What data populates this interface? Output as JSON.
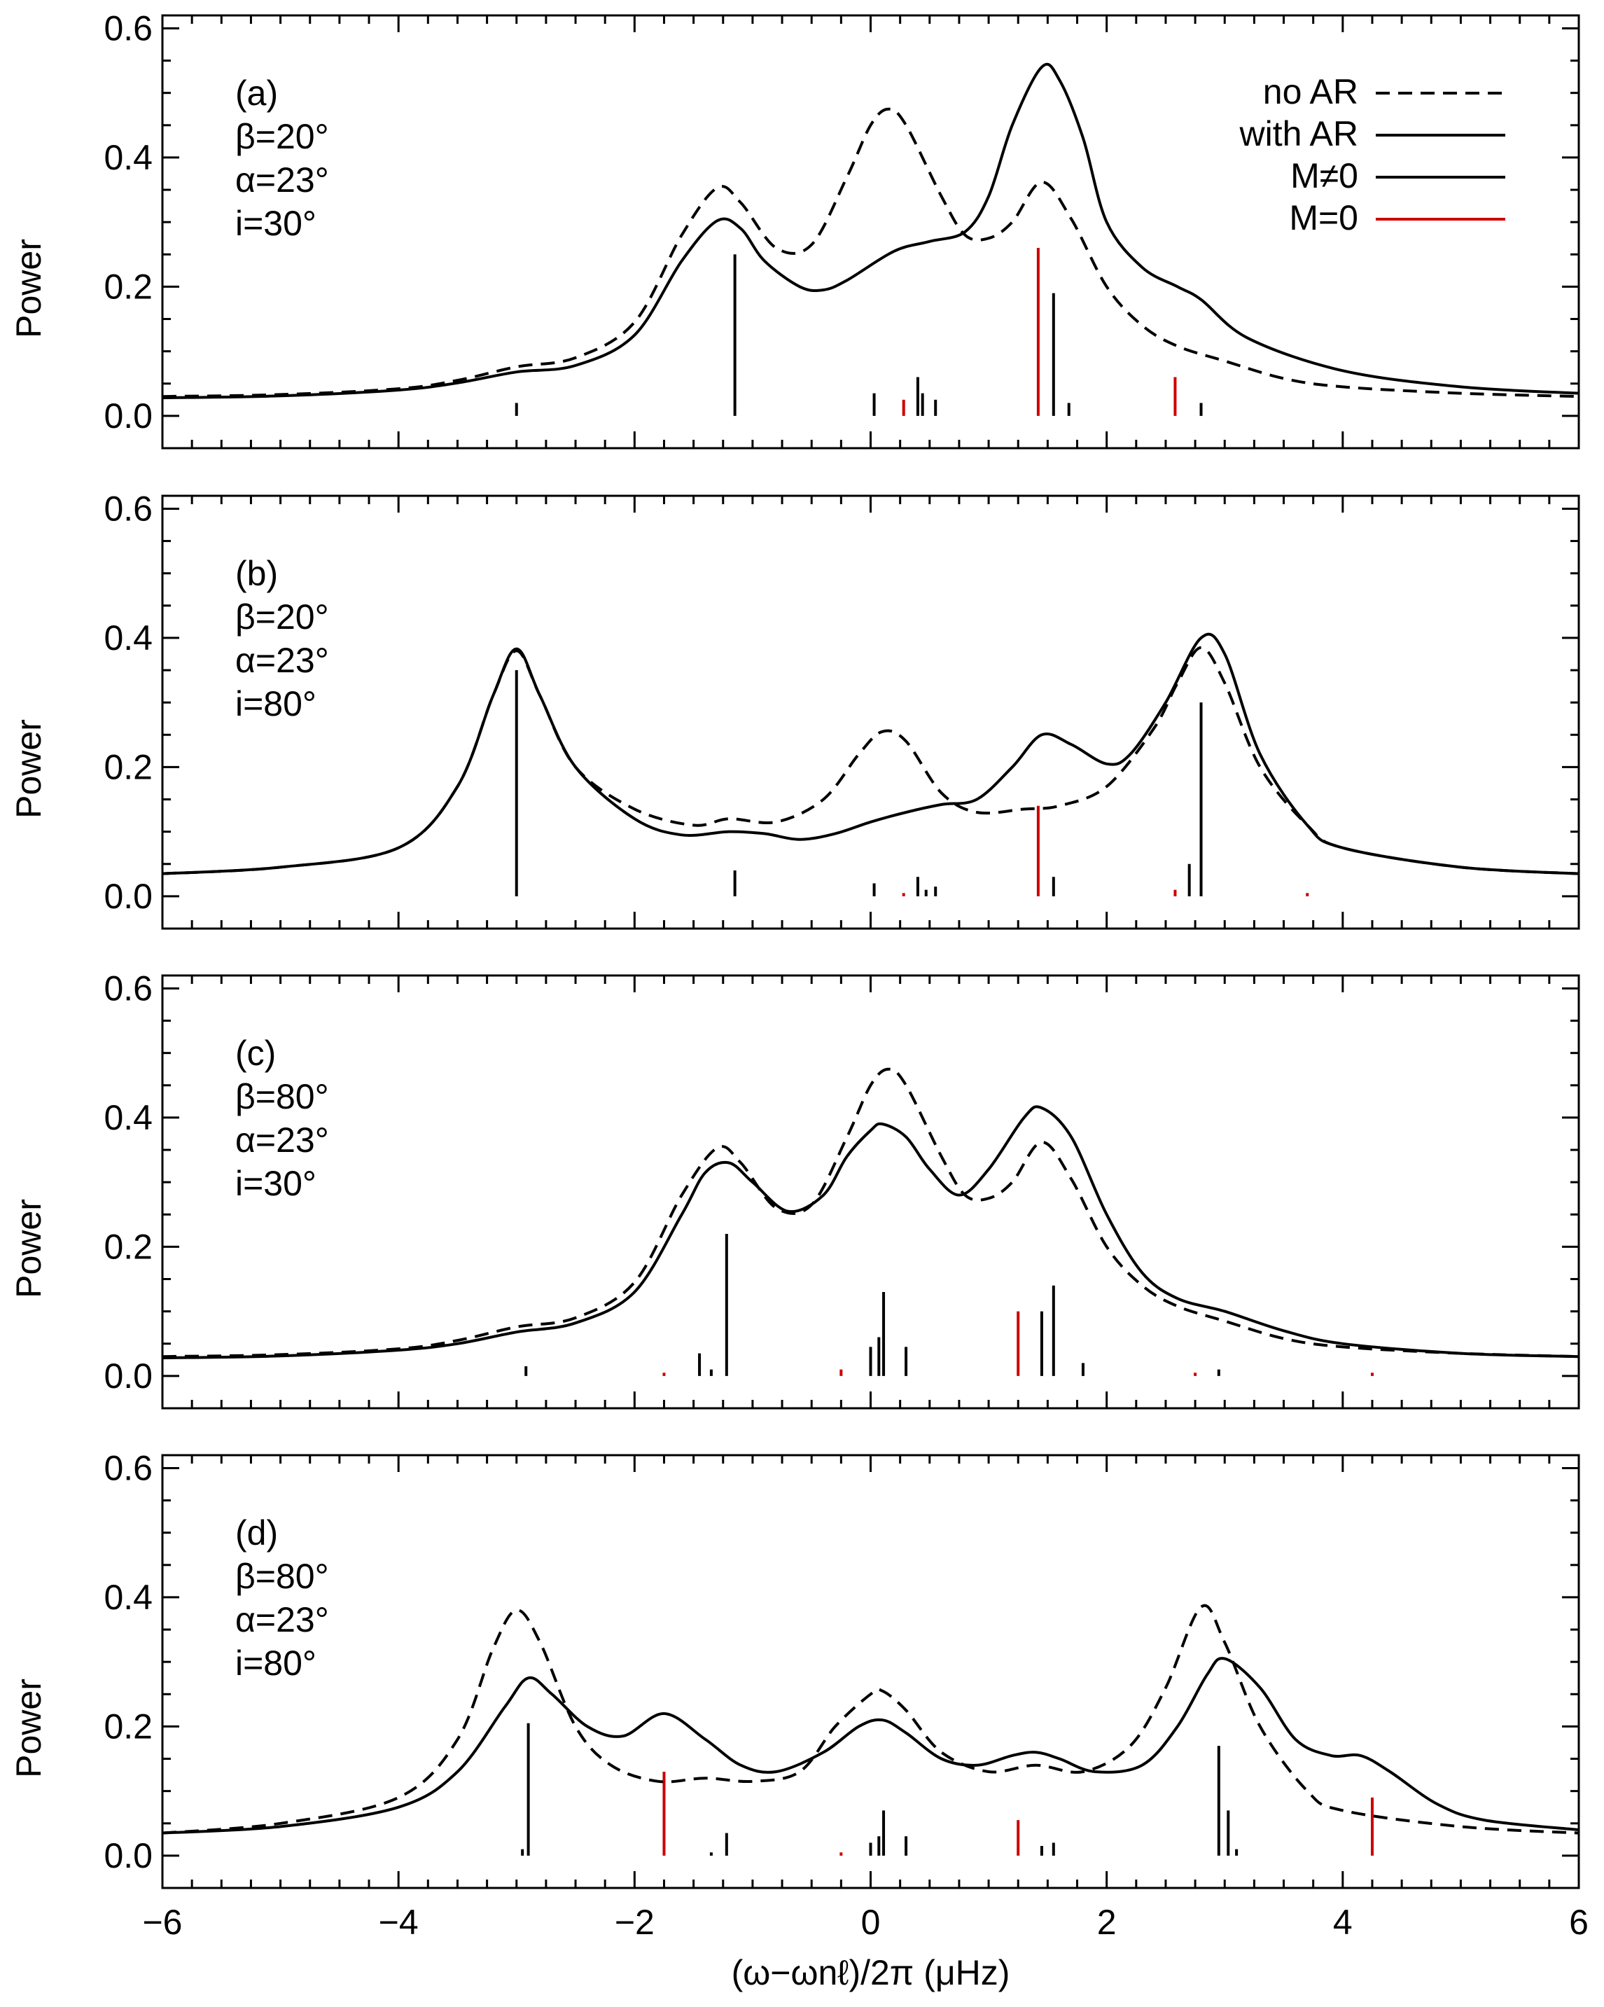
{
  "colors": {
    "axis": "#000000",
    "curve": "#000000",
    "mneq0": "#000000",
    "m0": "#cc0000"
  },
  "legend": {
    "items": [
      {
        "label": "no AR",
        "style": "dashed",
        "color": "#000000"
      },
      {
        "label": "with AR",
        "style": "solid",
        "color": "#000000"
      },
      {
        "label": "M≠0",
        "style": "solid",
        "color": "#000000"
      },
      {
        "label": "M=0",
        "style": "solid",
        "color": "#cc0000"
      }
    ]
  },
  "chart_data": [
    {
      "type": "line",
      "panel": "a",
      "ylabel": "Power",
      "xlim": [
        -6,
        6
      ],
      "ylim": [
        -0.05,
        0.62
      ],
      "yticks": [
        0.0,
        0.2,
        0.4,
        0.6
      ],
      "ytick_labels": [
        "0.0",
        "0.2",
        "0.4",
        "0.6"
      ],
      "annotation": [
        "(a)",
        "β=20°",
        "α=23°",
        "i=30°"
      ],
      "series": [
        {
          "name": "no AR",
          "style": "dashed",
          "x": [
            -6,
            -5,
            -4,
            -3.5,
            -3,
            -2.5,
            -2,
            -1.6,
            -1.3,
            -1.1,
            -0.8,
            -0.5,
            -0.2,
            0,
            0.15,
            0.3,
            0.6,
            0.8,
            1.0,
            1.2,
            1.45,
            1.7,
            2.0,
            2.3,
            2.6,
            3.0,
            3.5,
            4,
            5,
            6
          ],
          "y": [
            0.03,
            0.033,
            0.042,
            0.055,
            0.076,
            0.09,
            0.145,
            0.28,
            0.353,
            0.33,
            0.26,
            0.265,
            0.37,
            0.45,
            0.475,
            0.45,
            0.34,
            0.28,
            0.275,
            0.3,
            0.362,
            0.305,
            0.2,
            0.14,
            0.108,
            0.085,
            0.058,
            0.045,
            0.035,
            0.03
          ]
        },
        {
          "name": "with AR",
          "style": "solid",
          "x": [
            -6,
            -5,
            -4,
            -3.5,
            -3,
            -2.5,
            -2,
            -1.6,
            -1.3,
            -1.1,
            -0.9,
            -0.6,
            -0.4,
            -0.2,
            0.2,
            0.5,
            0.8,
            1.0,
            1.2,
            1.45,
            1.6,
            1.8,
            2.0,
            2.3,
            2.6,
            2.8,
            3.2,
            4,
            5,
            6
          ],
          "y": [
            0.028,
            0.031,
            0.04,
            0.051,
            0.068,
            0.078,
            0.125,
            0.24,
            0.302,
            0.29,
            0.24,
            0.2,
            0.195,
            0.21,
            0.255,
            0.27,
            0.285,
            0.34,
            0.45,
            0.54,
            0.52,
            0.43,
            0.3,
            0.23,
            0.2,
            0.18,
            0.12,
            0.07,
            0.045,
            0.035
          ]
        }
      ],
      "spikes": [
        {
          "x": -3.0,
          "h": 0.02,
          "color": "black"
        },
        {
          "x": -1.15,
          "h": 0.25,
          "color": "black"
        },
        {
          "x": 0.03,
          "h": 0.035,
          "color": "black"
        },
        {
          "x": 0.28,
          "h": 0.025,
          "color": "red"
        },
        {
          "x": 0.4,
          "h": 0.06,
          "color": "black"
        },
        {
          "x": 0.44,
          "h": 0.035,
          "color": "black"
        },
        {
          "x": 0.55,
          "h": 0.025,
          "color": "black"
        },
        {
          "x": 1.42,
          "h": 0.26,
          "color": "red"
        },
        {
          "x": 1.55,
          "h": 0.19,
          "color": "black"
        },
        {
          "x": 1.68,
          "h": 0.02,
          "color": "black"
        },
        {
          "x": 2.58,
          "h": 0.06,
          "color": "red"
        },
        {
          "x": 2.8,
          "h": 0.02,
          "color": "black"
        }
      ]
    },
    {
      "type": "line",
      "panel": "b",
      "ylabel": "Power",
      "xlim": [
        -6,
        6
      ],
      "ylim": [
        -0.05,
        0.62
      ],
      "yticks": [
        0.0,
        0.2,
        0.4,
        0.6
      ],
      "ytick_labels": [
        "0.0",
        "0.2",
        "0.4",
        "0.6"
      ],
      "annotation": [
        "(b)",
        "β=20°",
        "α=23°",
        "i=80°"
      ],
      "series": [
        {
          "name": "no AR",
          "style": "dashed",
          "x": [
            -6,
            -5,
            -4,
            -3.5,
            -3.2,
            -3.0,
            -2.8,
            -2.5,
            -2.0,
            -1.5,
            -1.2,
            -0.8,
            -0.4,
            -0.1,
            0.1,
            0.3,
            0.6,
            0.9,
            1.3,
            1.6,
            2.0,
            2.4,
            2.6,
            2.8,
            3.0,
            3.3,
            3.7,
            4,
            5,
            6
          ],
          "y": [
            0.035,
            0.045,
            0.075,
            0.17,
            0.31,
            0.38,
            0.31,
            0.2,
            0.135,
            0.11,
            0.12,
            0.115,
            0.15,
            0.22,
            0.255,
            0.24,
            0.16,
            0.13,
            0.135,
            0.14,
            0.17,
            0.26,
            0.33,
            0.385,
            0.33,
            0.2,
            0.11,
            0.075,
            0.045,
            0.035
          ]
        },
        {
          "name": "with AR",
          "style": "solid",
          "x": [
            -6,
            -5,
            -4,
            -3.5,
            -3.2,
            -3.0,
            -2.8,
            -2.5,
            -2.0,
            -1.6,
            -1.2,
            -0.9,
            -0.6,
            -0.3,
            0,
            0.3,
            0.6,
            0.9,
            1.2,
            1.45,
            1.7,
            2.0,
            2.2,
            2.5,
            2.8,
            3.0,
            3.3,
            3.7,
            4,
            5,
            6
          ],
          "y": [
            0.035,
            0.045,
            0.075,
            0.17,
            0.31,
            0.383,
            0.31,
            0.2,
            0.12,
            0.095,
            0.1,
            0.097,
            0.088,
            0.097,
            0.115,
            0.13,
            0.142,
            0.15,
            0.2,
            0.25,
            0.235,
            0.205,
            0.22,
            0.3,
            0.4,
            0.375,
            0.22,
            0.11,
            0.075,
            0.045,
            0.035
          ]
        }
      ],
      "spikes": [
        {
          "x": -3.0,
          "h": 0.35,
          "color": "black"
        },
        {
          "x": -1.15,
          "h": 0.04,
          "color": "black"
        },
        {
          "x": 0.03,
          "h": 0.02,
          "color": "black"
        },
        {
          "x": 0.28,
          "h": 0.005,
          "color": "red"
        },
        {
          "x": 0.4,
          "h": 0.03,
          "color": "black"
        },
        {
          "x": 0.47,
          "h": 0.01,
          "color": "black"
        },
        {
          "x": 0.55,
          "h": 0.015,
          "color": "black"
        },
        {
          "x": 1.42,
          "h": 0.14,
          "color": "red"
        },
        {
          "x": 1.55,
          "h": 0.03,
          "color": "black"
        },
        {
          "x": 2.58,
          "h": 0.01,
          "color": "red"
        },
        {
          "x": 2.7,
          "h": 0.05,
          "color": "black"
        },
        {
          "x": 2.8,
          "h": 0.3,
          "color": "black"
        },
        {
          "x": 3.7,
          "h": 0.005,
          "color": "red"
        }
      ]
    },
    {
      "type": "line",
      "panel": "c",
      "ylabel": "Power",
      "xlim": [
        -6,
        6
      ],
      "ylim": [
        -0.05,
        0.62
      ],
      "yticks": [
        0.0,
        0.2,
        0.4,
        0.6
      ],
      "ytick_labels": [
        "0.0",
        "0.2",
        "0.4",
        "0.6"
      ],
      "annotation": [
        "(c)",
        "β=80°",
        "α=23°",
        "i=30°"
      ],
      "series": [
        {
          "name": "no AR",
          "style": "dashed",
          "x": [
            -6,
            -5,
            -4,
            -3.5,
            -3,
            -2.5,
            -2,
            -1.6,
            -1.3,
            -1.1,
            -0.8,
            -0.5,
            -0.2,
            0,
            0.15,
            0.3,
            0.6,
            0.8,
            1.0,
            1.2,
            1.45,
            1.7,
            2.0,
            2.3,
            2.6,
            3.0,
            3.5,
            4,
            5,
            6
          ],
          "y": [
            0.03,
            0.033,
            0.042,
            0.055,
            0.076,
            0.09,
            0.145,
            0.28,
            0.353,
            0.33,
            0.26,
            0.265,
            0.37,
            0.45,
            0.475,
            0.45,
            0.34,
            0.28,
            0.275,
            0.3,
            0.362,
            0.305,
            0.2,
            0.14,
            0.108,
            0.085,
            0.058,
            0.045,
            0.035,
            0.03
          ]
        },
        {
          "name": "with AR",
          "style": "solid",
          "x": [
            -6,
            -5,
            -4,
            -3.5,
            -3,
            -2.5,
            -2,
            -1.6,
            -1.4,
            -1.2,
            -1.0,
            -0.7,
            -0.4,
            -0.2,
            0,
            0.1,
            0.3,
            0.5,
            0.75,
            1.0,
            1.3,
            1.45,
            1.7,
            2.0,
            2.3,
            2.6,
            3.0,
            3.5,
            4,
            5,
            6
          ],
          "y": [
            0.028,
            0.031,
            0.04,
            0.05,
            0.068,
            0.082,
            0.13,
            0.25,
            0.315,
            0.33,
            0.3,
            0.255,
            0.28,
            0.34,
            0.38,
            0.39,
            0.37,
            0.32,
            0.28,
            0.32,
            0.4,
            0.415,
            0.37,
            0.25,
            0.16,
            0.12,
            0.1,
            0.07,
            0.05,
            0.035,
            0.03
          ]
        }
      ],
      "spikes": [
        {
          "x": -2.92,
          "h": 0.015,
          "color": "black"
        },
        {
          "x": -1.75,
          "h": 0.005,
          "color": "red"
        },
        {
          "x": -1.45,
          "h": 0.035,
          "color": "black"
        },
        {
          "x": -1.35,
          "h": 0.01,
          "color": "black"
        },
        {
          "x": -1.22,
          "h": 0.22,
          "color": "black"
        },
        {
          "x": -0.25,
          "h": 0.01,
          "color": "red"
        },
        {
          "x": 0.0,
          "h": 0.045,
          "color": "black"
        },
        {
          "x": 0.07,
          "h": 0.06,
          "color": "black"
        },
        {
          "x": 0.11,
          "h": 0.13,
          "color": "black"
        },
        {
          "x": 0.3,
          "h": 0.045,
          "color": "black"
        },
        {
          "x": 1.25,
          "h": 0.1,
          "color": "red"
        },
        {
          "x": 1.45,
          "h": 0.1,
          "color": "black"
        },
        {
          "x": 1.55,
          "h": 0.14,
          "color": "black"
        },
        {
          "x": 1.8,
          "h": 0.02,
          "color": "black"
        },
        {
          "x": 2.75,
          "h": 0.005,
          "color": "red"
        },
        {
          "x": 2.95,
          "h": 0.01,
          "color": "black"
        },
        {
          "x": 4.25,
          "h": 0.005,
          "color": "red"
        }
      ]
    },
    {
      "type": "line",
      "panel": "d",
      "ylabel": "Power",
      "xlabel": "(ω−ωnℓ)/2π (μHz)",
      "xlim": [
        -6,
        6
      ],
      "ylim": [
        -0.05,
        0.62
      ],
      "xticks": [
        -6,
        -4,
        -2,
        0,
        2,
        4,
        6
      ],
      "xtick_labels": [
        "−6",
        "−4",
        "−2",
        "0",
        "2",
        "4",
        "6"
      ],
      "yticks": [
        0.0,
        0.2,
        0.4,
        0.6
      ],
      "ytick_labels": [
        "0.0",
        "0.2",
        "0.4",
        "0.6"
      ],
      "annotation": [
        "(d)",
        "β=80°",
        "α=23°",
        "i=80°"
      ],
      "series": [
        {
          "name": "no AR",
          "style": "dashed",
          "x": [
            -6,
            -5,
            -4,
            -3.5,
            -3.2,
            -3.0,
            -2.8,
            -2.5,
            -2.2,
            -1.8,
            -1.4,
            -1.0,
            -0.6,
            -0.3,
            0,
            0.1,
            0.3,
            0.6,
            1.0,
            1.4,
            1.8,
            2.2,
            2.5,
            2.8,
            3.0,
            3.3,
            3.7,
            4,
            5,
            6
          ],
          "y": [
            0.035,
            0.05,
            0.09,
            0.18,
            0.32,
            0.38,
            0.33,
            0.2,
            0.14,
            0.115,
            0.12,
            0.115,
            0.13,
            0.2,
            0.25,
            0.255,
            0.225,
            0.16,
            0.13,
            0.14,
            0.13,
            0.17,
            0.26,
            0.385,
            0.33,
            0.2,
            0.1,
            0.07,
            0.045,
            0.035
          ]
        },
        {
          "name": "with AR",
          "style": "solid",
          "x": [
            -6,
            -5,
            -4,
            -3.5,
            -3.1,
            -2.9,
            -2.7,
            -2.4,
            -2.1,
            -1.75,
            -1.4,
            -1.1,
            -0.8,
            -0.4,
            -0.1,
            0.1,
            0.3,
            0.6,
            0.9,
            1.2,
            1.4,
            1.6,
            1.9,
            2.3,
            2.6,
            2.85,
            3.0,
            3.3,
            3.6,
            3.9,
            4.15,
            4.4,
            4.8,
            5.2,
            6
          ],
          "y": [
            0.035,
            0.045,
            0.075,
            0.13,
            0.23,
            0.275,
            0.25,
            0.2,
            0.185,
            0.22,
            0.18,
            0.14,
            0.13,
            0.16,
            0.2,
            0.21,
            0.19,
            0.15,
            0.14,
            0.155,
            0.16,
            0.15,
            0.13,
            0.14,
            0.2,
            0.28,
            0.305,
            0.26,
            0.18,
            0.155,
            0.155,
            0.13,
            0.08,
            0.055,
            0.04
          ]
        }
      ],
      "spikes": [
        {
          "x": -2.95,
          "h": 0.01,
          "color": "black"
        },
        {
          "x": -2.9,
          "h": 0.205,
          "color": "black"
        },
        {
          "x": -1.75,
          "h": 0.13,
          "color": "red"
        },
        {
          "x": -1.35,
          "h": 0.005,
          "color": "black"
        },
        {
          "x": -1.22,
          "h": 0.035,
          "color": "black"
        },
        {
          "x": -0.25,
          "h": 0.005,
          "color": "red"
        },
        {
          "x": 0.0,
          "h": 0.02,
          "color": "black"
        },
        {
          "x": 0.07,
          "h": 0.03,
          "color": "black"
        },
        {
          "x": 0.11,
          "h": 0.07,
          "color": "black"
        },
        {
          "x": 0.3,
          "h": 0.03,
          "color": "black"
        },
        {
          "x": 1.25,
          "h": 0.055,
          "color": "red"
        },
        {
          "x": 1.45,
          "h": 0.015,
          "color": "black"
        },
        {
          "x": 1.55,
          "h": 0.02,
          "color": "black"
        },
        {
          "x": 2.95,
          "h": 0.17,
          "color": "black"
        },
        {
          "x": 3.03,
          "h": 0.07,
          "color": "black"
        },
        {
          "x": 3.1,
          "h": 0.01,
          "color": "black"
        },
        {
          "x": 4.25,
          "h": 0.09,
          "color": "red"
        }
      ]
    }
  ]
}
